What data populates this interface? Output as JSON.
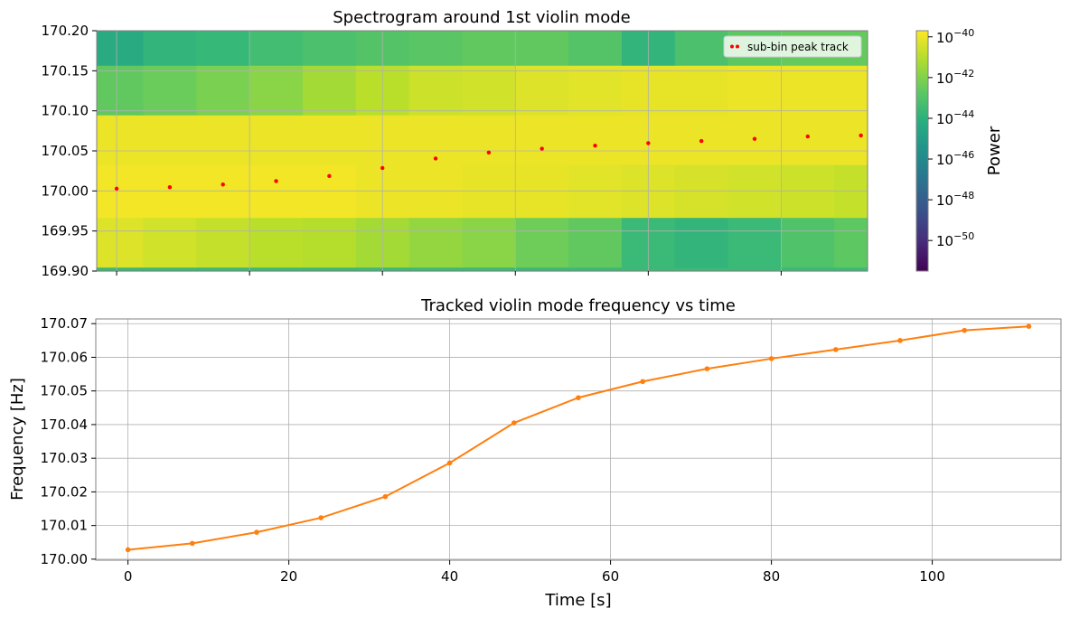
{
  "chart_data": [
    {
      "type": "heatmap",
      "title": "Spectrogram around 1st violin mode",
      "ylim": [
        169.9,
        170.2
      ],
      "y_ticks": [
        "169.90",
        "169.95",
        "170.00",
        "170.05",
        "170.10",
        "170.15",
        "170.20"
      ],
      "time_range": [
        -3,
        113
      ],
      "x_ticks": [
        0,
        20,
        40,
        60,
        80,
        100
      ],
      "grid": true,
      "freq_bins": [
        {
          "y0": 169.895,
          "y1": 169.905
        },
        {
          "y0": 169.905,
          "y1": 169.967
        },
        {
          "y0": 169.967,
          "y1": 170.033
        },
        {
          "y0": 170.033,
          "y1": 170.095
        },
        {
          "y0": 170.095,
          "y1": 170.157
        },
        {
          "y0": 170.157,
          "y1": 170.2
        }
      ],
      "time_bins": [
        -4,
        4,
        12,
        20,
        28,
        36,
        44,
        52,
        60,
        68,
        76,
        84,
        92,
        100,
        108,
        116
      ],
      "log_power": [
        [
          -43.5,
          -43.5,
          -43.5,
          -43.5,
          -43.5,
          -43.5,
          -43.5,
          -43.5,
          -43.5,
          -43.5,
          -43.5,
          -43.5,
          -43.5,
          -43.5,
          -43.5
        ],
        [
          -40.3,
          -40.5,
          -40.7,
          -40.9,
          -41.0,
          -41.3,
          -41.6,
          -41.8,
          -42.3,
          -42.6,
          -43.5,
          -43.8,
          -43.5,
          -43.0,
          -42.7
        ],
        [
          -39.9,
          -39.9,
          -39.9,
          -39.9,
          -39.9,
          -40.0,
          -40.0,
          -40.1,
          -40.1,
          -40.2,
          -40.3,
          -40.4,
          -40.5,
          -40.6,
          -40.7
        ],
        [
          -40.0,
          -40.0,
          -40.0,
          -40.0,
          -40.0,
          -40.0,
          -40.0,
          -40.0,
          -40.0,
          -40.0,
          -40.0,
          -40.0,
          -40.0,
          -40.0,
          -40.0
        ],
        [
          -42.6,
          -42.4,
          -42.1,
          -41.8,
          -41.3,
          -40.9,
          -40.6,
          -40.5,
          -40.3,
          -40.2,
          -40.1,
          -40.1,
          -40.0,
          -40.0,
          -40.0
        ],
        [
          -44.3,
          -43.8,
          -43.6,
          -43.3,
          -43.1,
          -42.9,
          -42.8,
          -42.6,
          -42.6,
          -42.9,
          -43.8,
          -43.1,
          -42.7,
          -42.5,
          -42.5
        ]
      ],
      "colorbar": {
        "label": "Power",
        "log_range": [
          -51.5,
          -39.7
        ],
        "tick_exponents": [
          -40,
          -42,
          -44,
          -46,
          -48,
          -50
        ],
        "tick_base": "10",
        "colormap": "viridis"
      },
      "legend": {
        "label": "sub-bin peak track",
        "position": "upper right"
      },
      "series": [
        {
          "name": "sub-bin peak track",
          "marker": "dot",
          "color": "#ff0000",
          "x": [
            0,
            8,
            16,
            24,
            32,
            40,
            48,
            56,
            64,
            72,
            80,
            88,
            96,
            104,
            112
          ],
          "y": [
            170.0028,
            170.0047,
            170.008,
            170.0123,
            170.0186,
            170.0286,
            170.0405,
            170.048,
            170.0528,
            170.0566,
            170.0596,
            170.0623,
            170.065,
            170.068,
            170.0692
          ]
        }
      ]
    },
    {
      "type": "line",
      "title": "Tracked violin mode frequency vs time",
      "xlabel": "Time [s]",
      "ylabel": "Frequency [Hz]",
      "xlim": [
        -4,
        116
      ],
      "ylim": [
        169.9997,
        170.0714
      ],
      "x_ticks": [
        0,
        20,
        40,
        60,
        80,
        100
      ],
      "y_ticks": [
        "170.00",
        "170.01",
        "170.02",
        "170.03",
        "170.04",
        "170.05",
        "170.06",
        "170.07"
      ],
      "grid": true,
      "series": [
        {
          "color": "#ff7f0e",
          "marker": "dot",
          "x": [
            0,
            8,
            16,
            24,
            32,
            40,
            48,
            56,
            64,
            72,
            80,
            88,
            96,
            104,
            112
          ],
          "y": [
            170.0028,
            170.0047,
            170.008,
            170.0123,
            170.0186,
            170.0286,
            170.0405,
            170.048,
            170.0528,
            170.0566,
            170.0596,
            170.0623,
            170.065,
            170.068,
            170.0692
          ]
        }
      ]
    }
  ]
}
